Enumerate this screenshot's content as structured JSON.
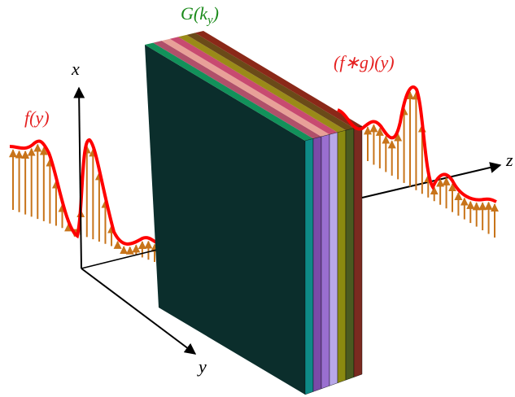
{
  "labels": {
    "filter": {
      "main": "G(k",
      "sub": "y",
      "close": ")"
    },
    "x_axis": "x",
    "input": "f(y)",
    "output": "(f∗g)(y)",
    "y_axis": "y",
    "z_axis": "z"
  }
}
